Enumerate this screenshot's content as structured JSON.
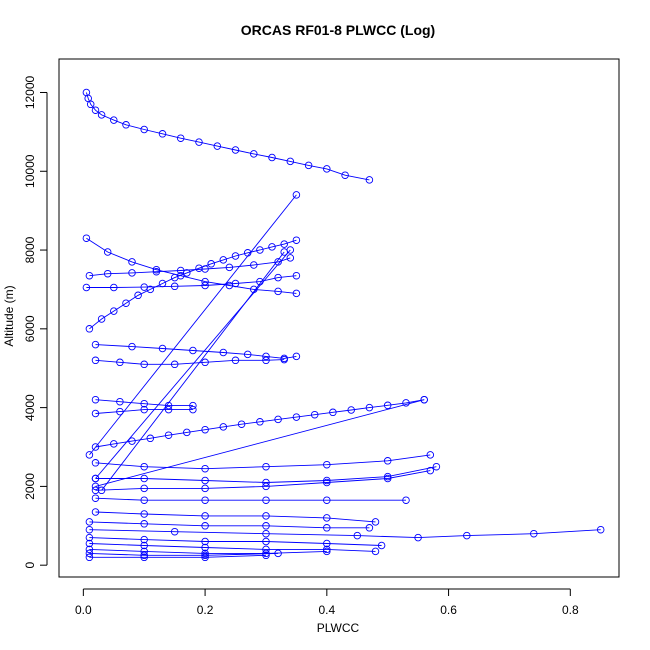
{
  "chart_data": {
    "type": "scatter",
    "title": "ORCAS RF01-8 PLWCC (Log)",
    "xlabel": "PLWCC",
    "ylabel": "Altitude (m)",
    "xlim": [
      -0.04,
      0.88
    ],
    "ylim": [
      -300,
      12850
    ],
    "x_ticks": [
      0.0,
      0.2,
      0.4,
      0.6,
      0.8
    ],
    "x_tick_labels": [
      "0.0",
      "0.2",
      "0.4",
      "0.6",
      "0.8"
    ],
    "y_ticks": [
      0,
      2000,
      4000,
      6000,
      8000,
      10000,
      12000
    ],
    "y_tick_labels": [
      "0",
      "2000",
      "4000",
      "6000",
      "8000",
      "10000",
      "12000"
    ],
    "grid": false,
    "legend": "none",
    "color": "#0000ff",
    "marker": "open-circle",
    "style": "points-connected-by-lines",
    "series": [
      {
        "x": [
          0.005,
          0.008,
          0.012,
          0.02,
          0.03,
          0.05,
          0.07,
          0.1,
          0.13,
          0.16,
          0.19,
          0.22,
          0.25,
          0.28,
          0.31,
          0.34,
          0.37,
          0.4,
          0.43,
          0.47
        ],
        "y": [
          12000,
          11850,
          11700,
          11550,
          11430,
          11300,
          11180,
          11060,
          10950,
          10840,
          10740,
          10640,
          10540,
          10440,
          10350,
          10250,
          10150,
          10060,
          9900,
          9780
        ]
      },
      {
        "x": [
          0.005,
          0.04,
          0.08,
          0.12,
          0.16,
          0.2,
          0.24,
          0.28,
          0.32,
          0.35
        ],
        "y": [
          8300,
          7950,
          7700,
          7500,
          7350,
          7200,
          7100,
          7000,
          6950,
          6900
        ]
      },
      {
        "x": [
          0.01,
          0.03,
          0.05,
          0.07,
          0.09,
          0.11,
          0.13,
          0.15,
          0.17,
          0.19,
          0.21,
          0.23,
          0.25,
          0.27,
          0.29,
          0.31,
          0.33,
          0.35
        ],
        "y": [
          6000,
          6250,
          6450,
          6650,
          6850,
          7000,
          7150,
          7300,
          7420,
          7540,
          7650,
          7750,
          7850,
          7930,
          8000,
          8080,
          8150,
          8250
        ]
      },
      {
        "x": [
          0.01,
          0.04,
          0.08,
          0.12,
          0.16,
          0.2,
          0.24,
          0.28,
          0.32,
          0.34
        ],
        "y": [
          7350,
          7400,
          7420,
          7450,
          7480,
          7520,
          7560,
          7620,
          7700,
          7800
        ]
      },
      {
        "x": [
          0.005,
          0.05,
          0.1,
          0.15,
          0.2,
          0.25,
          0.29,
          0.32,
          0.35
        ],
        "y": [
          7050,
          7050,
          7060,
          7080,
          7100,
          7150,
          7200,
          7300,
          7350
        ]
      },
      {
        "x": [
          0.01,
          0.35
        ],
        "y": [
          2800,
          9400
        ]
      },
      {
        "x": [
          0.02,
          0.34
        ],
        "y": [
          2200,
          8000
        ]
      },
      {
        "x": [
          0.03,
          0.33
        ],
        "y": [
          1900,
          7950
        ]
      },
      {
        "x": [
          0.02,
          0.08,
          0.13,
          0.18,
          0.23,
          0.27,
          0.3,
          0.33,
          0.35
        ],
        "y": [
          5600,
          5550,
          5500,
          5450,
          5400,
          5350,
          5300,
          5250,
          5300
        ]
      },
      {
        "x": [
          0.02,
          0.06,
          0.1,
          0.15,
          0.2,
          0.25,
          0.3,
          0.33
        ],
        "y": [
          5200,
          5150,
          5100,
          5100,
          5150,
          5200,
          5200,
          5220
        ]
      },
      {
        "x": [
          0.02,
          0.06,
          0.1,
          0.14,
          0.18
        ],
        "y": [
          4200,
          4150,
          4100,
          4050,
          4050
        ]
      },
      {
        "x": [
          0.02,
          0.06,
          0.1,
          0.14,
          0.18
        ],
        "y": [
          3850,
          3900,
          3950,
          3950,
          3950
        ]
      },
      {
        "x": [
          0.02,
          0.05,
          0.08,
          0.11,
          0.14,
          0.17,
          0.2,
          0.23,
          0.26,
          0.29,
          0.32,
          0.35,
          0.38,
          0.41,
          0.44,
          0.47,
          0.5,
          0.53,
          0.56
        ],
        "y": [
          3000,
          3080,
          3150,
          3220,
          3300,
          3370,
          3440,
          3510,
          3580,
          3640,
          3700,
          3760,
          3820,
          3880,
          3940,
          4000,
          4060,
          4120,
          4200
        ]
      },
      {
        "x": [
          0.02,
          0.56
        ],
        "y": [
          2000,
          4200
        ]
      },
      {
        "x": [
          0.02,
          0.1,
          0.2,
          0.3,
          0.4,
          0.5,
          0.57
        ],
        "y": [
          2600,
          2500,
          2450,
          2500,
          2550,
          2650,
          2800
        ]
      },
      {
        "x": [
          0.02,
          0.1,
          0.2,
          0.3,
          0.4,
          0.5,
          0.58
        ],
        "y": [
          2200,
          2200,
          2150,
          2100,
          2150,
          2250,
          2500
        ]
      },
      {
        "x": [
          0.02,
          0.1,
          0.2,
          0.3,
          0.4,
          0.5,
          0.57
        ],
        "y": [
          1900,
          1950,
          1950,
          2000,
          2100,
          2200,
          2400
        ]
      },
      {
        "x": [
          0.02,
          0.1,
          0.2,
          0.3,
          0.4,
          0.53
        ],
        "y": [
          1700,
          1650,
          1650,
          1650,
          1650,
          1650
        ]
      },
      {
        "x": [
          0.02,
          0.1,
          0.2,
          0.3,
          0.4,
          0.48
        ],
        "y": [
          1350,
          1300,
          1250,
          1250,
          1200,
          1100
        ]
      },
      {
        "x": [
          0.01,
          0.1,
          0.2,
          0.3,
          0.4,
          0.47
        ],
        "y": [
          1100,
          1050,
          1000,
          1000,
          950,
          950
        ]
      },
      {
        "x": [
          0.01,
          0.15,
          0.3,
          0.45,
          0.55,
          0.63,
          0.74,
          0.85
        ],
        "y": [
          900,
          850,
          800,
          750,
          700,
          750,
          800,
          900
        ]
      },
      {
        "x": [
          0.01,
          0.1,
          0.2,
          0.3,
          0.4,
          0.49
        ],
        "y": [
          700,
          650,
          600,
          600,
          550,
          500
        ]
      },
      {
        "x": [
          0.01,
          0.1,
          0.2,
          0.3,
          0.4,
          0.48
        ],
        "y": [
          550,
          500,
          450,
          400,
          400,
          350
        ]
      },
      {
        "x": [
          0.01,
          0.1,
          0.2,
          0.3,
          0.4
        ],
        "y": [
          400,
          350,
          300,
          300,
          350
        ]
      },
      {
        "x": [
          0.01,
          0.1,
          0.2,
          0.32
        ],
        "y": [
          300,
          250,
          250,
          300
        ]
      },
      {
        "x": [
          0.01,
          0.1,
          0.2,
          0.3
        ],
        "y": [
          200,
          200,
          200,
          250
        ]
      }
    ]
  }
}
